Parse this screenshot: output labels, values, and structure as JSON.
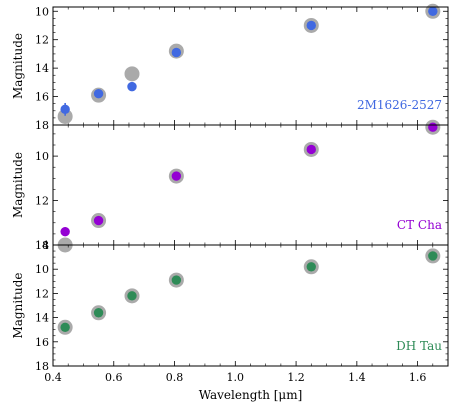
{
  "chart_data": [
    {
      "type": "scatter",
      "target": "2M1626-2527",
      "target_color": "#4169e1",
      "ylabel": "Magnitude",
      "ylim": [
        18,
        9.7
      ],
      "yticks": [
        10,
        12,
        14,
        16,
        18
      ],
      "ytick_labels": [
        "10",
        "12",
        "14",
        "16",
        "18"
      ],
      "series": [
        {
          "role": "background",
          "color": "#aaaaaa",
          "points": [
            {
              "x": 0.44,
              "y": 17.4
            },
            {
              "x": 0.55,
              "y": 15.9
            },
            {
              "x": 0.66,
              "y": 14.4
            },
            {
              "x": 0.806,
              "y": 12.8
            },
            {
              "x": 1.25,
              "y": 11.0
            },
            {
              "x": 1.65,
              "y": 10.0
            }
          ]
        },
        {
          "role": "foreground",
          "color": "#4169e1",
          "points": [
            {
              "x": 0.44,
              "y": 16.9,
              "yerr": 0.45
            },
            {
              "x": 0.55,
              "y": 15.8
            },
            {
              "x": 0.66,
              "y": 15.3,
              "yerr": 0.3
            },
            {
              "x": 0.806,
              "y": 12.9
            },
            {
              "x": 1.25,
              "y": 11.0
            },
            {
              "x": 1.65,
              "y": 10.0
            }
          ]
        }
      ]
    },
    {
      "type": "scatter",
      "target": "CT Cha",
      "target_color": "#9400d3",
      "ylabel": "Magnitude",
      "ylim": [
        14.0,
        8.6
      ],
      "yticks": [
        10,
        12,
        14
      ],
      "ytick_labels": [
        "10",
        "12",
        "14"
      ],
      "series": [
        {
          "role": "background",
          "color": "#aaaaaa",
          "points": [
            {
              "x": 0.44,
              "y": 14.0
            },
            {
              "x": 0.55,
              "y": 12.9
            },
            {
              "x": 0.806,
              "y": 10.9
            },
            {
              "x": 1.25,
              "y": 9.7
            },
            {
              "x": 1.65,
              "y": 8.7
            }
          ]
        },
        {
          "role": "foreground",
          "color": "#9400d3",
          "points": [
            {
              "x": 0.44,
              "y": 13.4,
              "yerr": 0.2
            },
            {
              "x": 0.55,
              "y": 12.9
            },
            {
              "x": 0.806,
              "y": 10.9
            },
            {
              "x": 1.25,
              "y": 9.7
            },
            {
              "x": 1.65,
              "y": 8.7
            }
          ]
        }
      ]
    },
    {
      "type": "scatter",
      "target": "DH Tau",
      "target_color": "#2e8b57",
      "ylabel": "Magnitude",
      "ylim": [
        18,
        8
      ],
      "yticks": [
        8,
        10,
        12,
        14,
        16,
        18
      ],
      "ytick_labels": [
        "8",
        "10",
        "12",
        "14",
        "16",
        "18"
      ],
      "xlabel": "Wavelength [μm]",
      "xlim": [
        0.4,
        1.7
      ],
      "xticks": [
        0.4,
        0.6,
        0.8,
        1.0,
        1.2,
        1.4,
        1.6
      ],
      "xtick_labels": [
        "0.4",
        "0.6",
        "0.8",
        "1.0",
        "1.2",
        "1.4",
        "1.6"
      ],
      "series": [
        {
          "role": "background",
          "color": "#aaaaaa",
          "points": [
            {
              "x": 0.44,
              "y": 14.8
            },
            {
              "x": 0.55,
              "y": 13.6
            },
            {
              "x": 0.66,
              "y": 12.2
            },
            {
              "x": 0.806,
              "y": 10.9
            },
            {
              "x": 1.25,
              "y": 9.8
            },
            {
              "x": 1.65,
              "y": 8.9
            }
          ]
        },
        {
          "role": "foreground",
          "color": "#2e8b57",
          "points": [
            {
              "x": 0.44,
              "y": 14.8
            },
            {
              "x": 0.55,
              "y": 13.6
            },
            {
              "x": 0.66,
              "y": 12.2
            },
            {
              "x": 0.806,
              "y": 10.9
            },
            {
              "x": 1.25,
              "y": 9.8
            },
            {
              "x": 1.65,
              "y": 8.9
            }
          ]
        }
      ]
    }
  ]
}
